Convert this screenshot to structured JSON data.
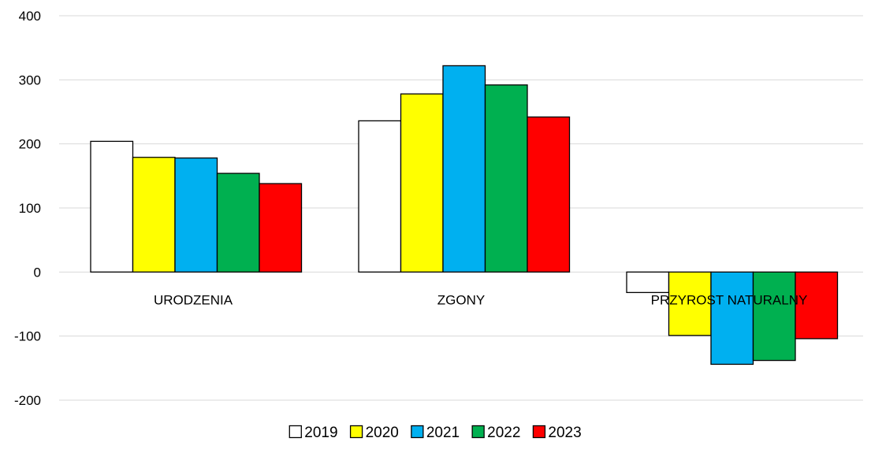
{
  "chart_data": {
    "type": "bar",
    "categories": [
      "URODZENIA",
      "ZGONY",
      "PRZYROST NATURALNY"
    ],
    "series": [
      {
        "name": "2019",
        "color": "#ffffff",
        "values": [
          204,
          236,
          -32
        ]
      },
      {
        "name": "2020",
        "color": "#ffff00",
        "values": [
          179,
          278,
          -99
        ]
      },
      {
        "name": "2021",
        "color": "#00b0f0",
        "values": [
          178,
          322,
          -144
        ]
      },
      {
        "name": "2022",
        "color": "#00b050",
        "values": [
          154,
          292,
          -138
        ]
      },
      {
        "name": "2023",
        "color": "#ff0000",
        "values": [
          138,
          242,
          -104
        ]
      }
    ],
    "ylim": [
      -200,
      400
    ],
    "yticks": [
      -200,
      -100,
      0,
      100,
      200,
      300,
      400
    ],
    "grid": true,
    "legend": "bottom",
    "title": "",
    "xlabel": "",
    "ylabel": ""
  }
}
